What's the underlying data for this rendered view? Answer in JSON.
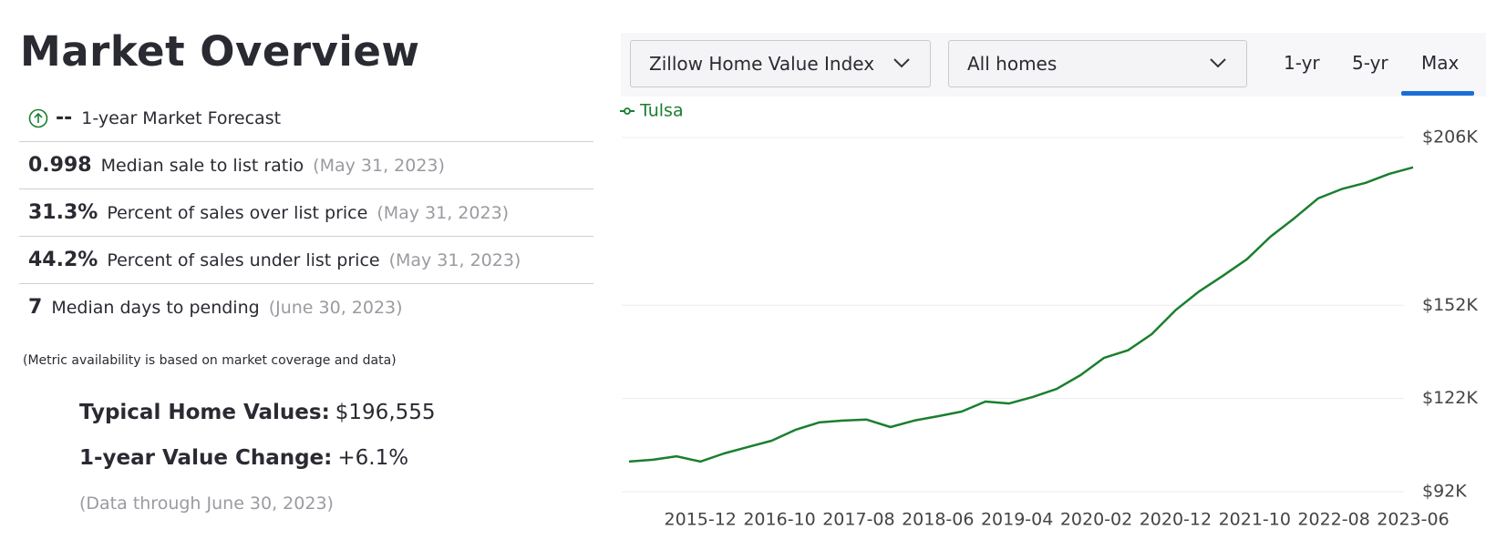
{
  "header": {
    "title": "Market Overview"
  },
  "forecast": {
    "value": "--",
    "label": "1-year Market Forecast"
  },
  "metrics": [
    {
      "value": "0.998",
      "label": "Median sale to list ratio",
      "date": "(May 31, 2023)"
    },
    {
      "value": "31.3%",
      "label": "Percent of sales over list price",
      "date": "(May 31, 2023)"
    },
    {
      "value": "44.2%",
      "label": "Percent of sales under list price",
      "date": "(May 31, 2023)"
    },
    {
      "value": "7",
      "label": "Median days to pending",
      "date": "(June 30, 2023)"
    }
  ],
  "note": "(Metric availability is based on market coverage and data)",
  "summary": {
    "home_values_label": "Typical Home Values:",
    "home_values": "$196,555",
    "change_label": "1-year Value Change:",
    "change": "+6.1%",
    "data_through": "(Data through June 30, 2023)"
  },
  "controls": {
    "index_select": "Zillow Home Value Index",
    "home_type_select": "All homes",
    "ranges": [
      "1-yr",
      "5-yr",
      "Max"
    ]
  },
  "chart_data": {
    "type": "line",
    "x": [
      "2015-03",
      "2015-06",
      "2015-09",
      "2015-12",
      "2016-03",
      "2016-06",
      "2016-09",
      "2016-12",
      "2017-03",
      "2017-06",
      "2017-09",
      "2017-12",
      "2018-03",
      "2018-06",
      "2018-09",
      "2018-12",
      "2019-03",
      "2019-06",
      "2019-09",
      "2019-12",
      "2020-03",
      "2020-06",
      "2020-09",
      "2020-12",
      "2021-03",
      "2021-06",
      "2021-09",
      "2021-12",
      "2022-03",
      "2022-06",
      "2022-09",
      "2022-12",
      "2023-03",
      "2023-06"
    ],
    "series": [
      {
        "name": "Tulsa",
        "color": "#1a7f2e",
        "values": [
          101700,
          102300,
          103400,
          101700,
          104300,
          106400,
          108400,
          111900,
          114300,
          114900,
          115200,
          112800,
          114900,
          116300,
          117800,
          121000,
          120400,
          122500,
          125100,
          129500,
          135100,
          137500,
          142700,
          150400,
          156500,
          161500,
          166800,
          174100,
          180000,
          186400,
          189400,
          191400,
          194300,
          196400
        ]
      }
    ],
    "ylim": [
      92000,
      206000
    ],
    "yticks": [
      {
        "value": 92000,
        "label": "$92K"
      },
      {
        "value": 122000,
        "label": "$122K"
      },
      {
        "value": 152000,
        "label": "$152K"
      },
      {
        "value": 206000,
        "label": "$206K"
      }
    ],
    "xticks": [
      "2015-12",
      "2016-10",
      "2017-08",
      "2018-06",
      "2019-04",
      "2020-02",
      "2020-12",
      "2021-10",
      "2022-08",
      "2023-06"
    ],
    "grid": true
  }
}
